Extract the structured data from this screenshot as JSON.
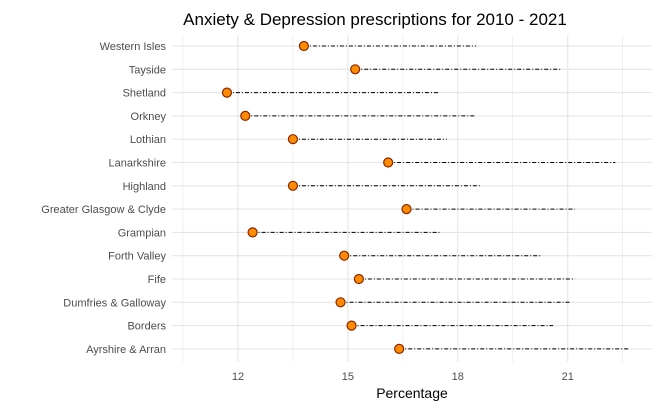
{
  "chart_data": {
    "type": "dumbbell",
    "title": "Anxiety & Depression prescriptions for 2010 - 2021",
    "xlabel": "Percentage",
    "ylabel": "",
    "xlim": [
      10.2,
      23.3
    ],
    "x_ticks": [
      12,
      15,
      18,
      21
    ],
    "categories": [
      "Western Isles",
      "Tayside",
      "Shetland",
      "Orkney",
      "Lothian",
      "Lanarkshire",
      "Highland",
      "Greater Glasgow & Clyde",
      "Grampian",
      "Forth Valley",
      "Fife",
      "Dumfries & Galloway",
      "Borders",
      "Ayrshire & Arran"
    ],
    "start_values": [
      13.8,
      15.2,
      11.7,
      12.2,
      13.5,
      16.1,
      13.5,
      16.6,
      12.4,
      14.9,
      15.3,
      14.8,
      15.1,
      16.4
    ],
    "end_values": [
      18.5,
      20.8,
      17.5,
      18.5,
      17.7,
      22.3,
      18.6,
      21.2,
      17.5,
      20.3,
      21.2,
      21.1,
      20.6,
      22.7
    ],
    "grid": true,
    "colors": {
      "point_fill": "#ff8c00",
      "point_stroke": "#8b2500",
      "segment": "#000000",
      "grid": "#e5e5e5"
    }
  }
}
